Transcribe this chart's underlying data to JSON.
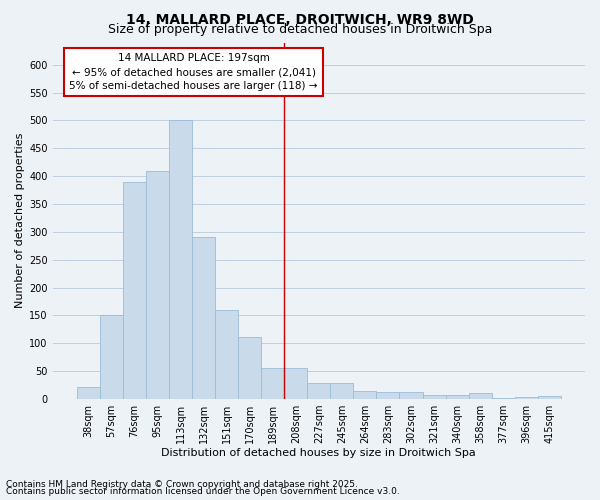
{
  "title1": "14, MALLARD PLACE, DROITWICH, WR9 8WD",
  "title2": "Size of property relative to detached houses in Droitwich Spa",
  "xlabel": "Distribution of detached houses by size in Droitwich Spa",
  "ylabel": "Number of detached properties",
  "categories": [
    "38sqm",
    "57sqm",
    "76sqm",
    "95sqm",
    "113sqm",
    "132sqm",
    "151sqm",
    "170sqm",
    "189sqm",
    "208sqm",
    "227sqm",
    "245sqm",
    "264sqm",
    "283sqm",
    "302sqm",
    "321sqm",
    "340sqm",
    "358sqm",
    "377sqm",
    "396sqm",
    "415sqm"
  ],
  "values": [
    22,
    150,
    390,
    410,
    500,
    290,
    160,
    112,
    55,
    55,
    28,
    28,
    15,
    13,
    12,
    7,
    8,
    10,
    2,
    3,
    5
  ],
  "bar_color": "#c9daea",
  "bar_edge_color": "#9bbdd4",
  "vline_x_index": 8.5,
  "vline_color": "#cc0000",
  "ylim": [
    0,
    640
  ],
  "yticks": [
    0,
    50,
    100,
    150,
    200,
    250,
    300,
    350,
    400,
    450,
    500,
    550,
    600
  ],
  "annotation_title": "14 MALLARD PLACE: 197sqm",
  "annotation_line1": "← 95% of detached houses are smaller (2,041)",
  "annotation_line2": "5% of semi-detached houses are larger (118) →",
  "annotation_box_facecolor": "#ffffff",
  "annotation_box_edgecolor": "#cc0000",
  "footer1": "Contains HM Land Registry data © Crown copyright and database right 2025.",
  "footer2": "Contains public sector information licensed under the Open Government Licence v3.0.",
  "bg_color": "#edf2f7",
  "grid_color": "#c0cfe0",
  "title_fontsize": 10,
  "subtitle_fontsize": 9,
  "axis_label_fontsize": 8,
  "tick_fontsize": 7,
  "annotation_fontsize": 7.5,
  "footer_fontsize": 6.5
}
